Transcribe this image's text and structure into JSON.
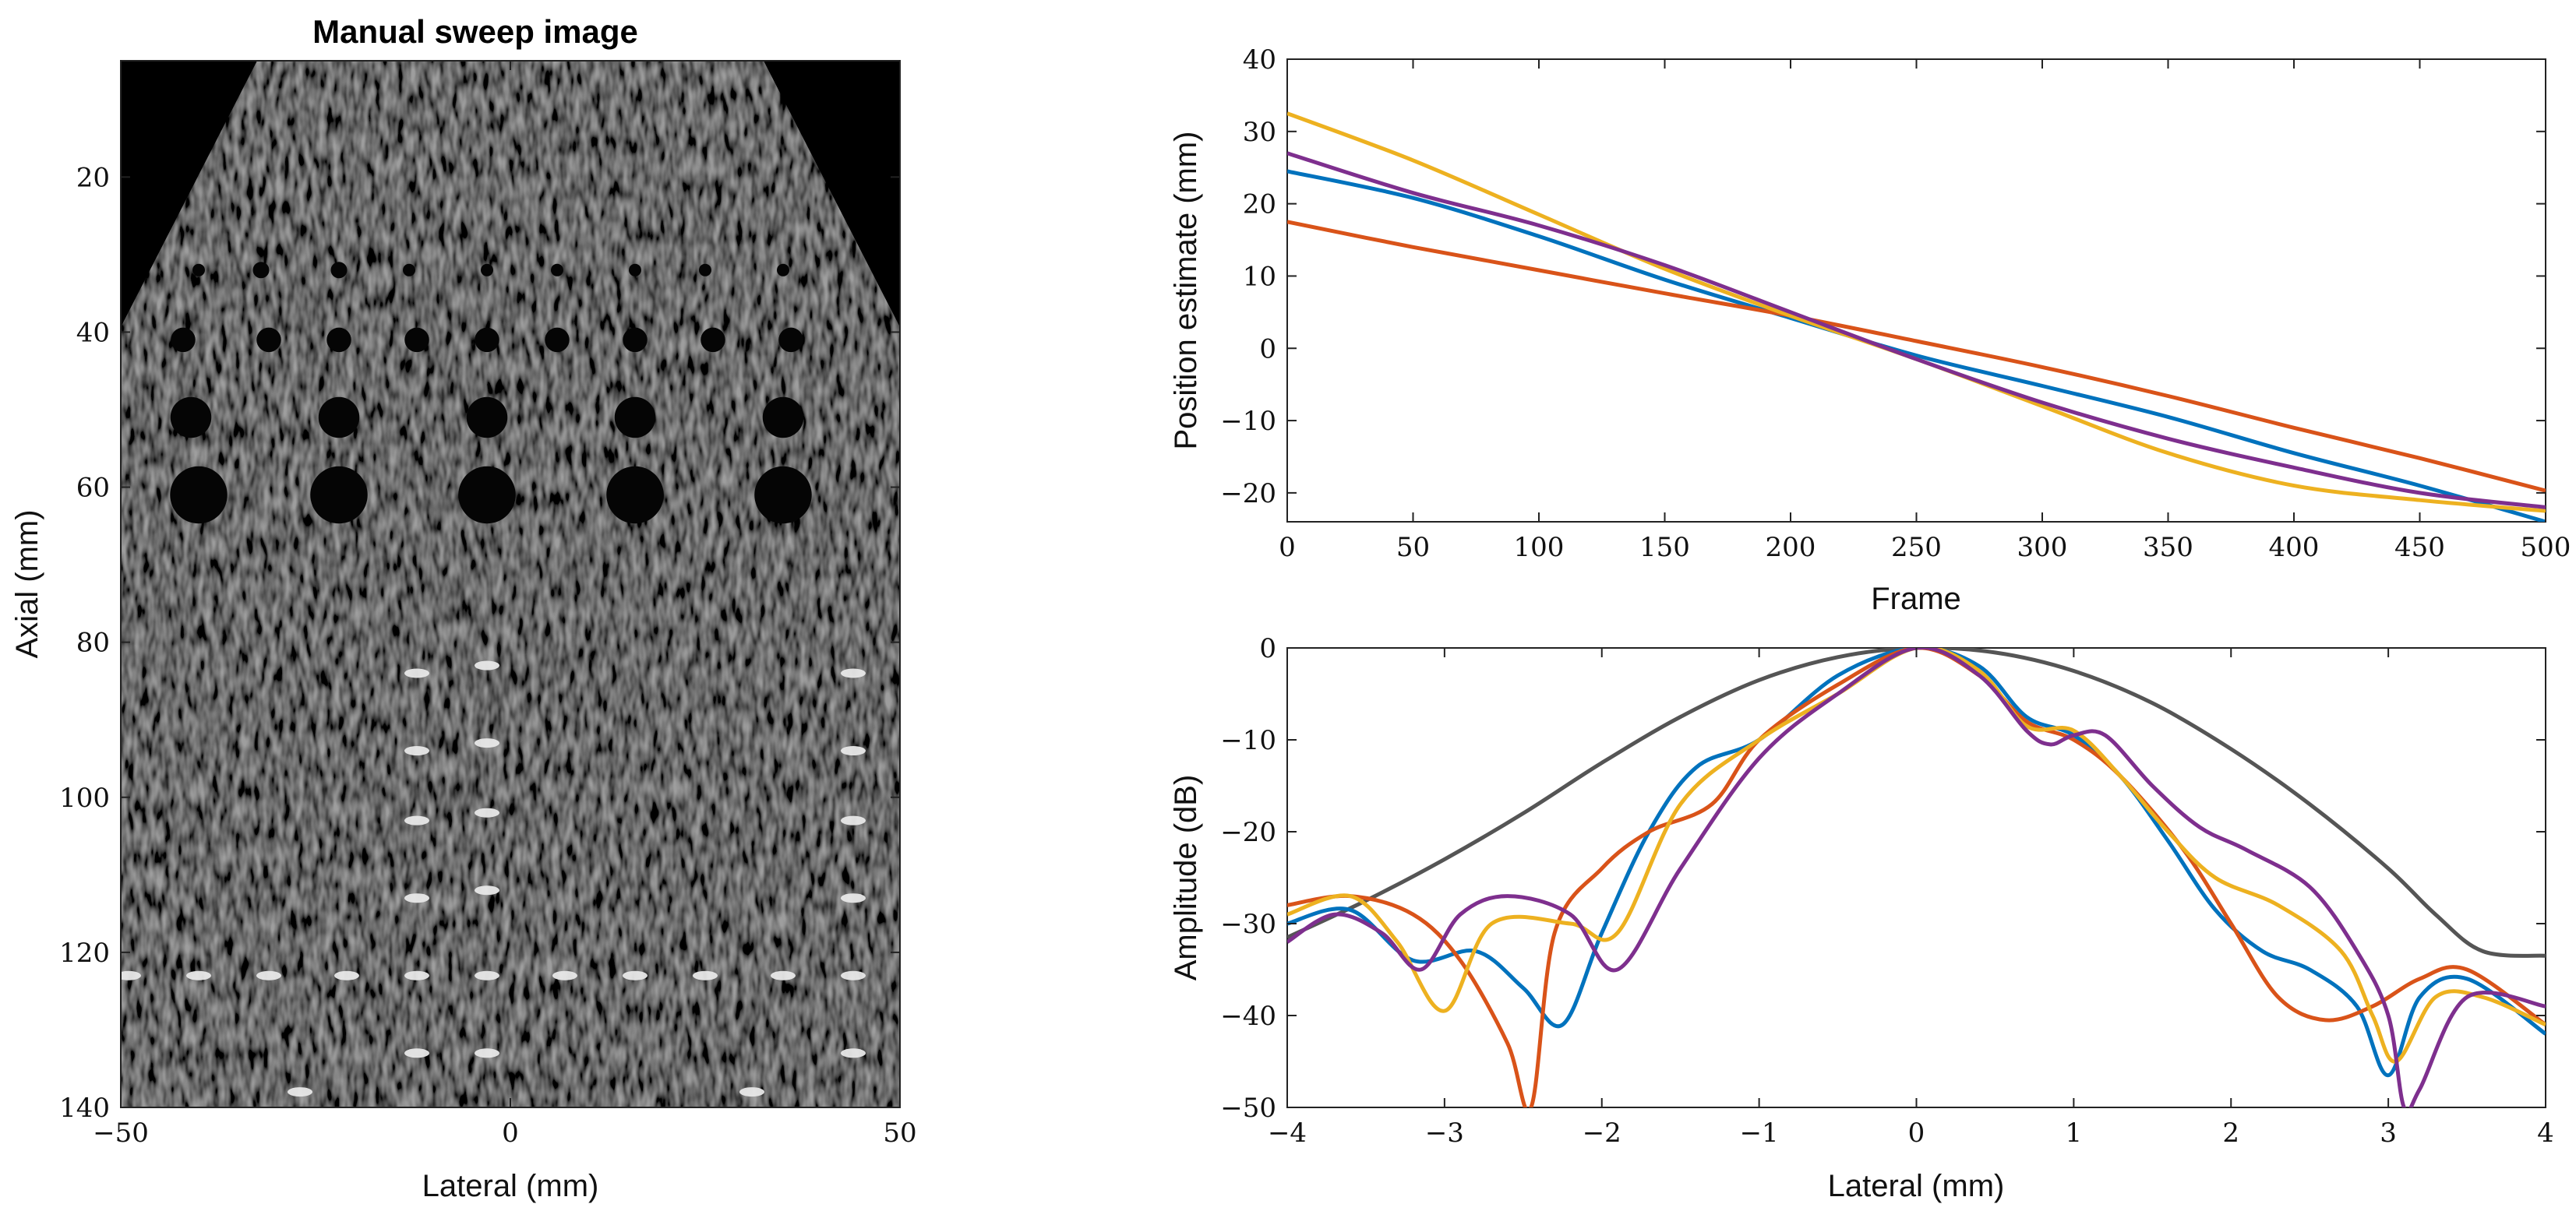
{
  "chart_data": [
    {
      "type": "image",
      "title": "Manual sweep image",
      "xlabel": "Lateral (mm)",
      "ylabel": "Axial (mm)",
      "xlim": [
        -50,
        50
      ],
      "ylim": [
        5,
        140
      ],
      "xticks": [
        -50,
        0,
        50
      ],
      "yticks": [
        20,
        40,
        60,
        80,
        100,
        120,
        140
      ],
      "colormap": "gray",
      "features": {
        "anechoic_cysts": [
          {
            "x": -40,
            "z": 32,
            "d": 1.5
          },
          {
            "x": -32,
            "z": 32,
            "d": 2
          },
          {
            "x": -22,
            "z": 32,
            "d": 2
          },
          {
            "x": -13,
            "z": 32,
            "d": 1.5
          },
          {
            "x": -3,
            "z": 32,
            "d": 1.5
          },
          {
            "x": 6,
            "z": 32,
            "d": 1.5
          },
          {
            "x": 16,
            "z": 32,
            "d": 1.5
          },
          {
            "x": 25,
            "z": 32,
            "d": 1.5
          },
          {
            "x": 35,
            "z": 32,
            "d": 1.5
          },
          {
            "x": -42,
            "z": 41,
            "d": 3
          },
          {
            "x": -31,
            "z": 41,
            "d": 3
          },
          {
            "x": -22,
            "z": 41,
            "d": 3
          },
          {
            "x": -12,
            "z": 41,
            "d": 3
          },
          {
            "x": -3,
            "z": 41,
            "d": 3
          },
          {
            "x": 6,
            "z": 41,
            "d": 3
          },
          {
            "x": 16,
            "z": 41,
            "d": 3
          },
          {
            "x": 26,
            "z": 41,
            "d": 3
          },
          {
            "x": 36,
            "z": 41,
            "d": 3
          },
          {
            "x": -41,
            "z": 51,
            "d": 5
          },
          {
            "x": -22,
            "z": 51,
            "d": 5
          },
          {
            "x": -3,
            "z": 51,
            "d": 5
          },
          {
            "x": 16,
            "z": 51,
            "d": 5
          },
          {
            "x": 35,
            "z": 51,
            "d": 5
          },
          {
            "x": -40,
            "z": 61,
            "d": 7
          },
          {
            "x": -22,
            "z": 61,
            "d": 7
          },
          {
            "x": -3,
            "z": 61,
            "d": 7
          },
          {
            "x": 16,
            "z": 61,
            "d": 7
          },
          {
            "x": 35,
            "z": 61,
            "d": 7
          }
        ],
        "point_targets": [
          {
            "x": -12,
            "z": 84
          },
          {
            "x": -3,
            "z": 83
          },
          {
            "x": 44,
            "z": 84
          },
          {
            "x": -12,
            "z": 94
          },
          {
            "x": -3,
            "z": 93
          },
          {
            "x": 44,
            "z": 94
          },
          {
            "x": -12,
            "z": 103
          },
          {
            "x": -3,
            "z": 102
          },
          {
            "x": 44,
            "z": 103
          },
          {
            "x": -12,
            "z": 113
          },
          {
            "x": -3,
            "z": 112
          },
          {
            "x": 44,
            "z": 113
          },
          {
            "x": -49,
            "z": 123
          },
          {
            "x": -40,
            "z": 123
          },
          {
            "x": -31,
            "z": 123
          },
          {
            "x": -21,
            "z": 123
          },
          {
            "x": -12,
            "z": 123
          },
          {
            "x": -3,
            "z": 123
          },
          {
            "x": 7,
            "z": 123
          },
          {
            "x": 16,
            "z": 123
          },
          {
            "x": 25,
            "z": 123
          },
          {
            "x": 35,
            "z": 123
          },
          {
            "x": 44,
            "z": 123
          },
          {
            "x": -12,
            "z": 133
          },
          {
            "x": -3,
            "z": 133
          },
          {
            "x": 44,
            "z": 133
          },
          {
            "x": -27,
            "z": 138
          },
          {
            "x": 31,
            "z": 138
          }
        ]
      }
    },
    {
      "type": "line",
      "title": "",
      "xlabel": "Frame",
      "ylabel": "Position estimate (mm)",
      "xlim": [
        0,
        500
      ],
      "ylim": [
        -24,
        40
      ],
      "xticks": [
        0,
        50,
        100,
        150,
        200,
        250,
        300,
        350,
        400,
        450,
        500
      ],
      "yticks": [
        -20,
        -10,
        0,
        10,
        20,
        30,
        40
      ],
      "series": [
        {
          "name": "blue",
          "color": "#0072BD",
          "x": [
            0,
            50,
            100,
            150,
            200,
            250,
            300,
            350,
            400,
            450,
            500
          ],
          "y": [
            24.5,
            20.8,
            15.5,
            9.5,
            4.2,
            -1.0,
            -5.2,
            -9.5,
            -14.5,
            -19.0,
            -24.0
          ]
        },
        {
          "name": "red",
          "color": "#D95319",
          "x": [
            0,
            50,
            100,
            150,
            200,
            250,
            300,
            350,
            400,
            450,
            500
          ],
          "y": [
            17.5,
            14.0,
            10.8,
            7.6,
            4.5,
            1.0,
            -2.6,
            -6.6,
            -11.0,
            -15.2,
            -19.7
          ]
        },
        {
          "name": "yellow",
          "color": "#EDB120",
          "x": [
            0,
            50,
            100,
            150,
            200,
            250,
            300,
            350,
            400,
            450,
            500
          ],
          "y": [
            32.5,
            26.0,
            18.5,
            11.0,
            4.5,
            -1.5,
            -8.0,
            -14.5,
            -19.0,
            -21.0,
            -22.5
          ]
        },
        {
          "name": "purple",
          "color": "#7E2F8E",
          "x": [
            0,
            50,
            100,
            150,
            200,
            250,
            300,
            350,
            400,
            450,
            500
          ],
          "y": [
            27.0,
            21.5,
            17.0,
            11.5,
            5.0,
            -1.5,
            -7.5,
            -12.5,
            -16.5,
            -20.0,
            -22.0
          ]
        }
      ]
    },
    {
      "type": "line",
      "title": "",
      "xlabel": "Lateral (mm)",
      "ylabel": "Amplitude (dB)",
      "xlim": [
        -4,
        4
      ],
      "ylim": [
        -50,
        0
      ],
      "xticks": [
        -4,
        -3,
        -2,
        -1,
        0,
        1,
        2,
        3,
        4
      ],
      "yticks": [
        -50,
        -40,
        -30,
        -20,
        -10,
        0
      ],
      "series": [
        {
          "name": "gray",
          "color": "#555555",
          "x": [
            -4,
            -3.5,
            -3,
            -2.5,
            -2,
            -1.5,
            -1,
            -0.5,
            0,
            0.5,
            1,
            1.5,
            2,
            2.5,
            3,
            3.3,
            3.6,
            4
          ],
          "y": [
            -31.5,
            -27.5,
            -23,
            -18,
            -12.5,
            -7.5,
            -3.5,
            -1,
            0,
            -0.5,
            -2.5,
            -6,
            -11,
            -17,
            -24,
            -29,
            -33,
            -33.5
          ]
        },
        {
          "name": "blue",
          "color": "#0072BD",
          "x": [
            -4,
            -3.6,
            -3.2,
            -2.8,
            -2.5,
            -2.25,
            -2.0,
            -1.7,
            -1.4,
            -1.0,
            -0.5,
            0,
            0.4,
            0.7,
            1.0,
            1.3,
            1.6,
            1.9,
            2.2,
            2.5,
            2.8,
            3.0,
            3.2,
            3.5,
            4.0
          ],
          "y": [
            -30,
            -28.5,
            -34,
            -33,
            -37,
            -41,
            -31,
            -20,
            -13,
            -10,
            -3,
            0,
            -2,
            -7.5,
            -9.5,
            -14,
            -21,
            -28.5,
            -33,
            -35,
            -39,
            -46.5,
            -38,
            -36,
            -42
          ]
        },
        {
          "name": "red",
          "color": "#D95319",
          "x": [
            -4,
            -3.6,
            -3.2,
            -2.9,
            -2.6,
            -2.45,
            -2.3,
            -2.0,
            -1.7,
            -1.3,
            -1.0,
            -0.5,
            0,
            0.4,
            0.7,
            1.0,
            1.3,
            1.7,
            2.0,
            2.3,
            2.6,
            2.9,
            3.2,
            3.5,
            4.0
          ],
          "y": [
            -28,
            -27,
            -29,
            -34,
            -43,
            -50,
            -31,
            -24,
            -20,
            -17,
            -10,
            -4,
            0,
            -3,
            -8,
            -10,
            -14,
            -22,
            -30,
            -38,
            -40.5,
            -39,
            -36,
            -35,
            -41
          ]
        },
        {
          "name": "yellow",
          "color": "#EDB120",
          "x": [
            -4,
            -3.6,
            -3.3,
            -3.0,
            -2.7,
            -2.2,
            -1.9,
            -1.5,
            -1.0,
            -0.5,
            0,
            0.4,
            0.7,
            1.0,
            1.3,
            1.6,
            1.9,
            2.3,
            2.7,
            2.9,
            3.05,
            3.3,
            3.6,
            4.0
          ],
          "y": [
            -29,
            -27,
            -32,
            -39.5,
            -30,
            -30,
            -31,
            -17,
            -10,
            -5,
            0,
            -2.5,
            -8.5,
            -9,
            -14,
            -20,
            -25,
            -28,
            -33,
            -40,
            -45,
            -38,
            -38,
            -41
          ]
        },
        {
          "name": "purple",
          "color": "#7E2F8E",
          "x": [
            -4,
            -3.7,
            -3.4,
            -3.15,
            -2.9,
            -2.6,
            -2.2,
            -1.9,
            -1.5,
            -1.0,
            -0.5,
            0,
            0.4,
            0.7,
            0.85,
            1.0,
            1.2,
            1.5,
            1.8,
            2.1,
            2.5,
            2.8,
            3.0,
            3.1,
            3.2,
            3.5,
            4.0
          ],
          "y": [
            -32,
            -29,
            -31,
            -35,
            -29,
            -27,
            -29,
            -35,
            -24,
            -12,
            -5,
            0,
            -3,
            -9,
            -10.5,
            -9.5,
            -9.5,
            -15,
            -19.5,
            -22,
            -26,
            -33,
            -40,
            -50,
            -48,
            -38,
            -39
          ]
        }
      ]
    }
  ]
}
